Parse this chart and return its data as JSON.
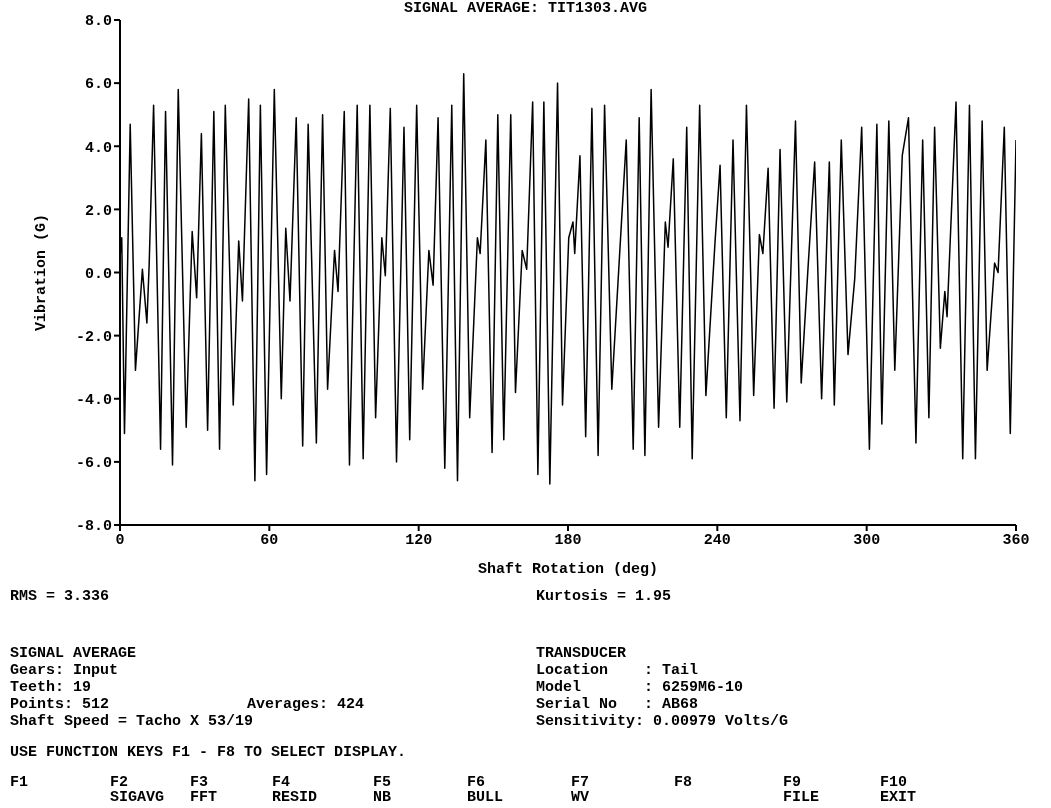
{
  "chart_data": {
    "type": "line",
    "title": "SIGNAL AVERAGE: TIT1303.AVG",
    "xlabel": "Shaft Rotation (deg)",
    "ylabel": "Vibration (G)",
    "xlim": [
      0,
      360
    ],
    "xticks": [
      0,
      60,
      120,
      180,
      240,
      300,
      360
    ],
    "ylim": [
      -8,
      8
    ],
    "yticks": [
      {
        "value": -8,
        "label": "-8.0"
      },
      {
        "value": -6,
        "label": "-6.0"
      },
      {
        "value": -4,
        "label": "-4.0"
      },
      {
        "value": -2,
        "label": "-2.0"
      },
      {
        "value": 0,
        "label": "0.0"
      },
      {
        "value": 2,
        "label": "2.0"
      },
      {
        "value": 4,
        "label": "4.0"
      },
      {
        "value": 6,
        "label": "6.0"
      },
      {
        "value": 8,
        "label": "8.0"
      }
    ],
    "x": [
      0,
      0.7,
      1.8,
      4.1,
      6.2,
      9,
      10.8,
      11.7,
      13.5,
      16.3,
      18.3,
      21.1,
      23.4,
      26.6,
      29,
      30.8,
      32.7,
      35.2,
      37.7,
      40,
      42.3,
      45.5,
      47.7,
      49.2,
      51.7,
      54.2,
      56.4,
      58.9,
      62,
      64.8,
      66.6,
      68.3,
      70.8,
      73.4,
      75.6,
      78.9,
      81.4,
      83.4,
      86.2,
      87.6,
      90.1,
      92.2,
      95.3,
      97.7,
      100.4,
      102.7,
      105.2,
      106.6,
      108.6,
      111.1,
      114.1,
      116.4,
      119.2,
      121.6,
      124.1,
      125.8,
      127.8,
      130.5,
      133.3,
      135.6,
      138.1,
      140.5,
      143.6,
      144.7,
      147,
      149.5,
      151.8,
      154.2,
      157,
      158.9,
      161.6,
      163.4,
      165.8,
      167.9,
      170.3,
      172.7,
      175.8,
      177.8,
      180.3,
      182,
      182.7,
      184.8,
      187.1,
      189.6,
      192.1,
      194.7,
      197.6,
      203.4,
      206.2,
      208.6,
      210.9,
      213.4,
      216.4,
      219.1,
      220.2,
      222.3,
      224.9,
      227.7,
      229.9,
      232.9,
      235.4,
      239.1,
      241.1,
      243.6,
      246.3,
      249.1,
      251.7,
      254.6,
      256.9,
      258.3,
      260.4,
      262.8,
      265.2,
      267.9,
      271.4,
      273.7,
      276.4,
      279.1,
      281.9,
      285,
      287,
      289.8,
      292.5,
      295.2,
      298,
      301.1,
      304.1,
      306.1,
      308.9,
      311.3,
      314.3,
      316.8,
      319.8,
      322.5,
      325,
      327.3,
      329.6,
      331.4,
      332.3,
      335.9,
      338.6,
      341.3,
      343.7,
      346.4,
      348.4,
      351.4,
      352.8,
      355.3,
      357.7,
      360
    ],
    "series": [
      {
        "color": "#000000",
        "values": [
          0.5,
          1.1,
          -5.1,
          4.7,
          -3.1,
          0.1,
          -1.6,
          0.2,
          5.3,
          -5.6,
          5.1,
          -6.1,
          5.8,
          -4.9,
          1.3,
          -0.8,
          4.4,
          -5.0,
          5.1,
          -5.6,
          5.3,
          -4.2,
          1.0,
          -0.9,
          5.5,
          -6.6,
          5.3,
          -6.4,
          5.8,
          -4.0,
          1.4,
          -0.9,
          4.9,
          -5.5,
          4.7,
          -5.4,
          5.0,
          -3.7,
          0.7,
          -0.6,
          5.1,
          -6.1,
          5.3,
          -5.9,
          5.3,
          -4.6,
          1.1,
          -0.1,
          5.2,
          -6.0,
          4.6,
          -5.3,
          5.3,
          -3.7,
          0.7,
          -0.4,
          4.9,
          -6.2,
          5.3,
          -6.6,
          6.3,
          -4.6,
          1.1,
          0.6,
          4.2,
          -5.7,
          5.0,
          -5.3,
          5.0,
          -3.8,
          0.7,
          0.1,
          5.4,
          -6.4,
          5.4,
          -6.7,
          6.0,
          -4.2,
          1.1,
          1.6,
          0.6,
          3.7,
          -5.2,
          5.2,
          -5.8,
          5.3,
          -3.7,
          4.2,
          -5.6,
          4.9,
          -5.8,
          5.8,
          -4.9,
          1.6,
          0.8,
          3.6,
          -4.9,
          4.6,
          -5.9,
          5.3,
          -3.9,
          1.0,
          3.4,
          -4.6,
          4.2,
          -4.7,
          5.3,
          -3.9,
          1.2,
          0.6,
          3.3,
          -4.3,
          3.9,
          -4.1,
          4.8,
          -3.5,
          0.1,
          3.5,
          -4.0,
          3.5,
          -4.2,
          4.2,
          -2.6,
          -0.2,
          4.6,
          -5.6,
          4.7,
          -4.8,
          4.8,
          -3.1,
          3.7,
          4.9,
          -5.4,
          4.2,
          -4.6,
          4.6,
          -2.4,
          -0.6,
          -1.4,
          5.4,
          -5.9,
          5.3,
          -5.9,
          4.8,
          -3.1,
          0.3,
          0.0,
          4.6,
          -5.1,
          4.2
        ]
      }
    ],
    "annotations": [
      "RMS = 3.336",
      "Kurtosis = 1.95",
      "SIGNAL AVERAGE",
      "Gears: Input",
      "Teeth: 19",
      "Points: 512",
      "Averages: 424",
      "Shaft Speed = Tacho X 53/19",
      "TRANSDUCER",
      "Location    : Tail",
      "Model       : 6259M6-10",
      "Serial No   : AB68",
      "Sensitivity: 0.00979 Volts/G",
      "USE FUNCTION KEYS F1 - F8 TO SELECT DISPLAY.",
      "F1",
      "F2",
      "SIGAVG",
      "F3",
      "FFT",
      "F4",
      "RESID",
      "F5",
      "NB",
      "F6",
      "BULL",
      "F7",
      "WV",
      "F8",
      "F9",
      "FILE",
      "F10",
      "EXIT"
    ]
  }
}
